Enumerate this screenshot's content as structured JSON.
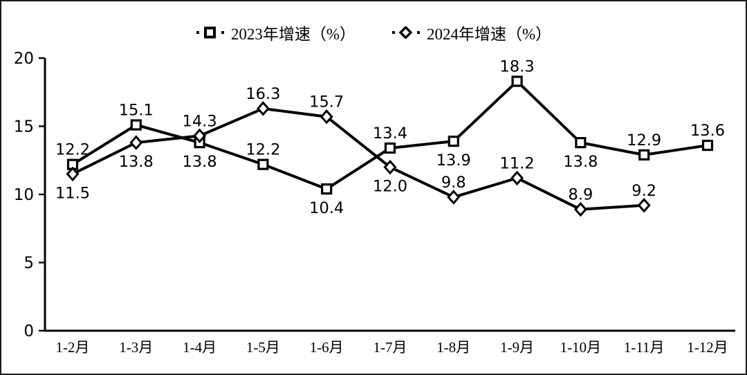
{
  "chart_data": {
    "type": "line",
    "title": "",
    "xlabel": "",
    "ylabel": "",
    "categories": [
      "1-2月",
      "1-3月",
      "1-4月",
      "1-5月",
      "1-6月",
      "1-7月",
      "1-8月",
      "1-9月",
      "1-10月",
      "1-11月",
      "1-12月"
    ],
    "series": [
      {
        "name": "2023年增速（%）",
        "marker": "square",
        "values": [
          12.2,
          15.1,
          13.8,
          12.2,
          10.4,
          13.4,
          13.9,
          18.3,
          13.8,
          12.9,
          13.6
        ]
      },
      {
        "name": "2024年增速（%）",
        "marker": "diamond",
        "values": [
          11.5,
          13.8,
          14.3,
          16.3,
          15.7,
          12.0,
          9.8,
          11.2,
          8.9,
          9.2,
          null
        ]
      }
    ],
    "ylim": [
      0,
      20
    ],
    "yticks": [
      0,
      5,
      10,
      15,
      20
    ],
    "grid": false,
    "legend_position": "top-center",
    "line_color": "#000000",
    "marker_fill": "#ffffff",
    "text_color": "#000000",
    "background": "#ffffff"
  }
}
